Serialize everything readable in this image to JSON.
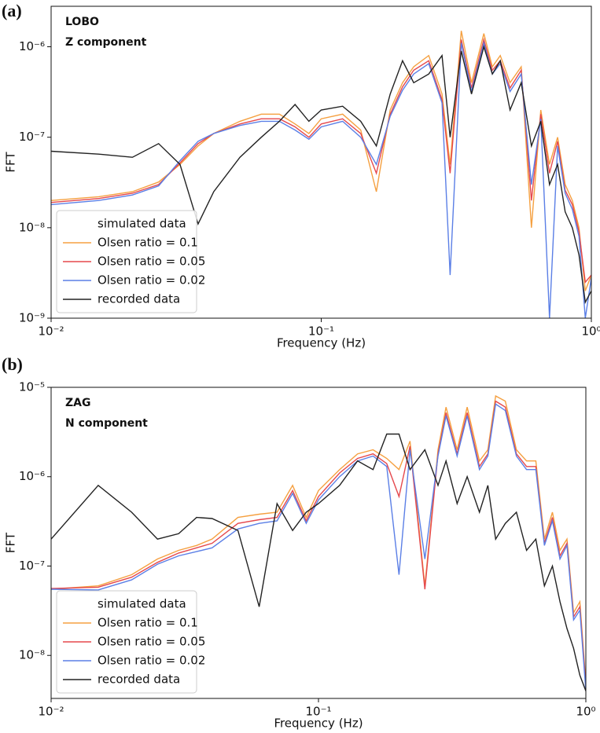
{
  "chart_data": [
    {
      "type": "line",
      "panel_label": "(a)",
      "annotations": [
        "LOBO",
        "Z component"
      ],
      "xlabel": "Frequency (Hz)",
      "ylabel": "FFT",
      "log_x": true,
      "log_y": true,
      "legend_title": "simulated data",
      "legend": "lower left",
      "xlim": [
        0.01,
        1
      ],
      "ylim": [
        1e-09,
        2.8e-06
      ],
      "xticks": [
        {
          "value": 0.01,
          "label": "10⁻²"
        },
        {
          "value": 0.1,
          "label": "10⁻¹"
        },
        {
          "value": 1,
          "label": "10⁰"
        }
      ],
      "yticks": [
        {
          "value": 1e-09,
          "label": "10⁻⁹"
        },
        {
          "value": 1e-08,
          "label": "10⁻⁸"
        },
        {
          "value": 1e-07,
          "label": "10⁻⁷"
        },
        {
          "value": 1e-06,
          "label": "10⁻⁶"
        }
      ],
      "x": [
        0.01,
        0.015,
        0.02,
        0.025,
        0.03,
        0.035,
        0.04,
        0.05,
        0.06,
        0.07,
        0.08,
        0.09,
        0.1,
        0.12,
        0.14,
        0.16,
        0.18,
        0.2,
        0.22,
        0.25,
        0.28,
        0.3,
        0.33,
        0.36,
        0.4,
        0.43,
        0.46,
        0.5,
        0.55,
        0.6,
        0.65,
        0.7,
        0.75,
        0.8,
        0.85,
        0.9,
        0.95,
        1.0
      ],
      "series": [
        {
          "name": "Olsen ratio = 0.1",
          "color": "#f5a040",
          "values": [
            2e-08,
            2.2e-08,
            2.5e-08,
            3.2e-08,
            5e-08,
            8e-08,
            1.1e-07,
            1.5e-07,
            1.8e-07,
            1.8e-07,
            1.4e-07,
            1.1e-07,
            1.6e-07,
            1.8e-07,
            1.2e-07,
            2.5e-08,
            2e-07,
            4e-07,
            6e-07,
            8e-07,
            3e-07,
            5e-08,
            1.5e-06,
            4e-07,
            1.4e-06,
            6e-07,
            8e-07,
            4e-07,
            6e-07,
            1e-08,
            2e-07,
            5e-08,
            1e-07,
            3e-08,
            2e-08,
            1e-08,
            2e-09,
            3e-09
          ]
        },
        {
          "name": "Olsen ratio = 0.05",
          "color": "#e5484d",
          "values": [
            1.9e-08,
            2.1e-08,
            2.4e-08,
            3e-08,
            5.2e-08,
            8.5e-08,
            1.1e-07,
            1.4e-07,
            1.6e-07,
            1.6e-07,
            1.3e-07,
            1e-07,
            1.4e-07,
            1.6e-07,
            1.1e-07,
            4e-08,
            1.8e-07,
            3.6e-07,
            5.5e-07,
            7e-07,
            2.6e-07,
            4e-08,
            1.2e-06,
            3.5e-07,
            1.2e-06,
            5.5e-07,
            7e-07,
            3.5e-07,
            5.5e-07,
            2e-08,
            1.8e-07,
            4e-08,
            9e-08,
            2.6e-08,
            1.8e-08,
            9e-09,
            2.5e-09,
            3e-09
          ]
        },
        {
          "name": "Olsen ratio = 0.02",
          "color": "#5b7fe6",
          "values": [
            1.8e-08,
            2e-08,
            2.3e-08,
            2.9e-08,
            5.5e-08,
            9e-08,
            1.1e-07,
            1.35e-07,
            1.5e-07,
            1.5e-07,
            1.2e-07,
            9.5e-08,
            1.3e-07,
            1.5e-07,
            1e-07,
            5e-08,
            1.7e-07,
            3.3e-07,
            5e-07,
            6.5e-07,
            2.4e-07,
            3e-09,
            1.1e-06,
            3.2e-07,
            1.1e-06,
            5e-07,
            6.5e-07,
            3.2e-07,
            5e-07,
            3e-08,
            1.6e-07,
            1e-09,
            8e-08,
            2.4e-08,
            1.6e-08,
            8e-09,
            1e-09,
            2.8e-09
          ]
        },
        {
          "name": "recorded data",
          "color": "#222222",
          "values": [
            7e-08,
            6.5e-08,
            6e-08,
            8.5e-08,
            5e-08,
            1.1e-08,
            2.5e-08,
            6e-08,
            1e-07,
            1.5e-07,
            2.3e-07,
            1.5e-07,
            2e-07,
            2.2e-07,
            1.5e-07,
            8e-08,
            3e-07,
            7e-07,
            4e-07,
            5e-07,
            8e-07,
            1e-07,
            9e-07,
            3e-07,
            1e-06,
            5e-07,
            7e-07,
            2e-07,
            4e-07,
            8e-08,
            1.5e-07,
            3e-08,
            5e-08,
            1.5e-08,
            1e-08,
            5e-09,
            1.5e-09,
            2e-09
          ]
        }
      ]
    },
    {
      "type": "line",
      "panel_label": "(b)",
      "annotations": [
        "ZAG",
        "N component"
      ],
      "xlabel": "Frequency (Hz)",
      "ylabel": "FFT",
      "log_x": true,
      "log_y": true,
      "legend_title": "simulated data",
      "legend": "lower left",
      "xlim": [
        0.01,
        1
      ],
      "ylim": [
        3.3e-09,
        1e-05
      ],
      "xticks": [
        {
          "value": 0.01,
          "label": "10⁻²"
        },
        {
          "value": 0.1,
          "label": "10⁻¹"
        },
        {
          "value": 1,
          "label": "10⁰"
        }
      ],
      "yticks": [
        {
          "value": 1e-08,
          "label": "10⁻⁸"
        },
        {
          "value": 1e-07,
          "label": "10⁻⁷"
        },
        {
          "value": 1e-06,
          "label": "10⁻⁶"
        },
        {
          "value": 1e-05,
          "label": "10⁻⁵"
        }
      ],
      "x": [
        0.01,
        0.015,
        0.02,
        0.025,
        0.03,
        0.035,
        0.04,
        0.05,
        0.06,
        0.07,
        0.08,
        0.09,
        0.1,
        0.12,
        0.14,
        0.16,
        0.18,
        0.2,
        0.22,
        0.25,
        0.28,
        0.3,
        0.33,
        0.36,
        0.4,
        0.43,
        0.46,
        0.5,
        0.55,
        0.6,
        0.65,
        0.7,
        0.75,
        0.8,
        0.85,
        0.9,
        0.95,
        1.0
      ],
      "series": [
        {
          "name": "Olsen ratio = 0.1",
          "color": "#f5a040",
          "values": [
            5.5e-08,
            6e-08,
            8e-08,
            1.2e-07,
            1.5e-07,
            1.7e-07,
            2e-07,
            3.5e-07,
            3.8e-07,
            4e-07,
            8e-07,
            3.5e-07,
            7e-07,
            1.2e-06,
            1.8e-06,
            2e-06,
            1.6e-06,
            1.2e-06,
            2.5e-06,
            6e-08,
            2e-06,
            6e-06,
            2e-06,
            6e-06,
            1.5e-06,
            2e-06,
            8e-06,
            7e-06,
            2e-06,
            1.5e-06,
            1.5e-06,
            2e-07,
            4e-07,
            1.5e-07,
            2e-07,
            3e-08,
            4e-08,
            5e-09
          ]
        },
        {
          "name": "Olsen ratio = 0.05",
          "color": "#e5484d",
          "values": [
            5.6e-08,
            5.8e-08,
            7.5e-08,
            1.1e-07,
            1.4e-07,
            1.6e-07,
            1.8e-07,
            3e-07,
            3.3e-07,
            3.5e-07,
            7e-07,
            3.2e-07,
            6e-07,
            1.1e-06,
            1.6e-06,
            1.8e-06,
            1.4e-06,
            6e-07,
            2.2e-06,
            5.5e-08,
            1.8e-06,
            5.2e-06,
            1.8e-06,
            5.2e-06,
            1.3e-06,
            1.8e-06,
            7e-06,
            6e-06,
            1.8e-06,
            1.3e-06,
            1.3e-06,
            1.8e-07,
            3.5e-07,
            1.3e-07,
            1.8e-07,
            2.7e-08,
            3.5e-08,
            4.5e-09
          ]
        },
        {
          "name": "Olsen ratio = 0.02",
          "color": "#5b7fe6",
          "values": [
            5.5e-08,
            5.4e-08,
            7e-08,
            1.05e-07,
            1.3e-07,
            1.45e-07,
            1.6e-07,
            2.6e-07,
            3e-07,
            3.2e-07,
            6.5e-07,
            3e-07,
            5.5e-07,
            1e-06,
            1.5e-06,
            1.7e-06,
            1.3e-06,
            8e-08,
            2e-06,
            1.2e-07,
            1.7e-06,
            4.8e-06,
            1.7e-06,
            4.8e-06,
            1.2e-06,
            1.7e-06,
            6.5e-06,
            5.5e-06,
            1.7e-06,
            1.2e-06,
            1.2e-06,
            1.7e-07,
            3.2e-07,
            1.2e-07,
            1.7e-07,
            2.5e-08,
            3.2e-08,
            4e-09
          ]
        },
        {
          "name": "recorded data",
          "color": "#222222",
          "values": [
            2e-07,
            8e-07,
            4e-07,
            2e-07,
            2.3e-07,
            3.5e-07,
            3.4e-07,
            2.5e-07,
            3.5e-08,
            5e-07,
            2.5e-07,
            4e-07,
            5e-07,
            8e-07,
            1.5e-06,
            1.2e-06,
            3e-06,
            3e-06,
            1.2e-06,
            2e-06,
            8e-07,
            1.5e-06,
            5e-07,
            1e-06,
            4e-07,
            8e-07,
            2e-07,
            3e-07,
            4e-07,
            1.5e-07,
            2e-07,
            6e-08,
            1e-07,
            4e-08,
            2e-08,
            1.2e-08,
            6e-09,
            4e-09
          ]
        }
      ]
    }
  ]
}
